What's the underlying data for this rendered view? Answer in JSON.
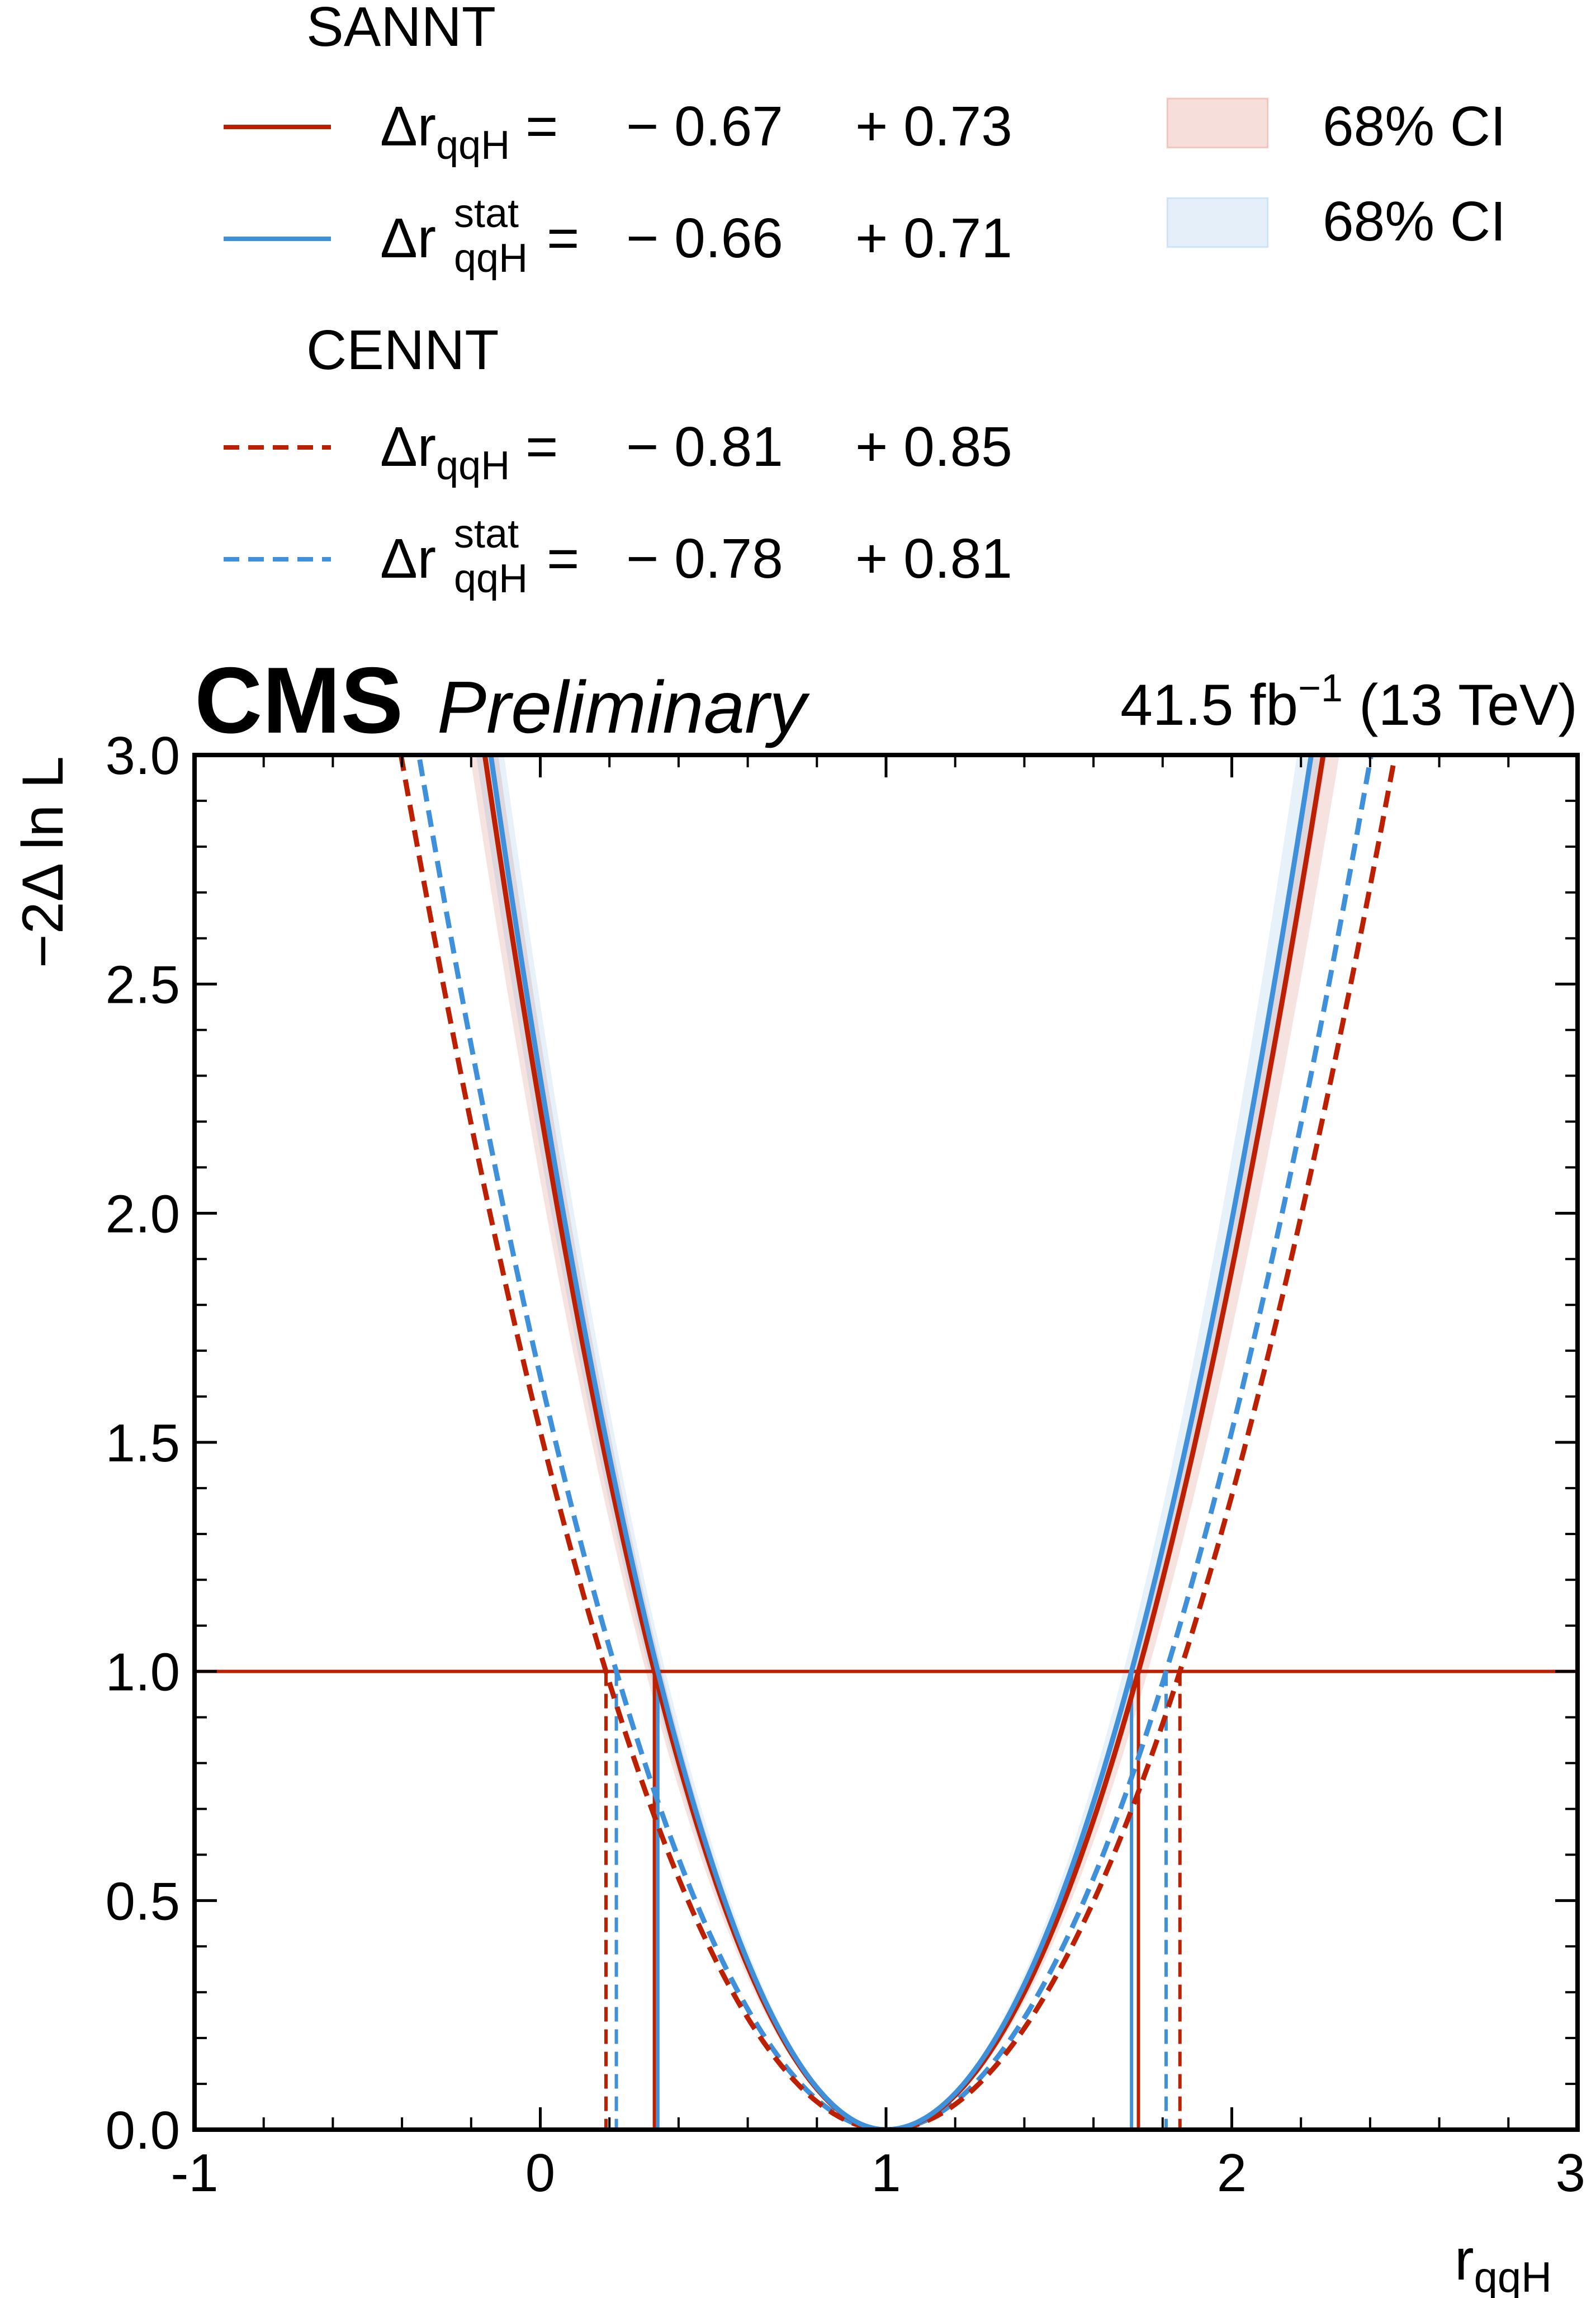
{
  "chart_data": {
    "type": "line",
    "title": "CMS Preliminary",
    "experiment": "CMS",
    "label": "Preliminary",
    "lumi": {
      "value": "41.5 fb",
      "exponent": "−1",
      "energy": "(13 TeV)"
    },
    "xlabel": {
      "main": "r",
      "sub": "qqH"
    },
    "ylabel": "−2Δ ln L",
    "xlim": [
      -1,
      3
    ],
    "ylim": [
      0,
      3
    ],
    "xticks": [
      -1,
      0,
      1,
      2,
      3
    ],
    "xtick_labels": [
      "-1",
      "0",
      "1",
      "2",
      "3"
    ],
    "yticks": [
      0,
      0.5,
      1,
      1.5,
      2,
      2.5,
      3
    ],
    "ytick_labels": [
      "0.0",
      "0.5",
      "1.0",
      "1.5",
      "2.0",
      "2.5",
      "3.0"
    ],
    "best_fit": 1.0,
    "threshold": 1.0,
    "groups": [
      {
        "name": "SANNT",
        "entries": [
          {
            "symbol": "Δr",
            "sub": "qqH",
            "sup": "",
            "minus": "− 0.67",
            "plus": "+ 0.73",
            "lo": 0.33,
            "hi": 1.73,
            "style": "solid",
            "color": "#bd1f01",
            "band": true
          },
          {
            "symbol": "Δr",
            "sub": "qqH",
            "sup": "stat",
            "minus": "− 0.66",
            "plus": "+ 0.71",
            "lo": 0.34,
            "hi": 1.71,
            "style": "solid",
            "color": "#3f90da",
            "band": true
          }
        ]
      },
      {
        "name": "CENNT",
        "entries": [
          {
            "symbol": "Δr",
            "sub": "qqH",
            "sup": "",
            "minus": "− 0.81",
            "plus": "+ 0.85",
            "lo": 0.19,
            "hi": 1.85,
            "style": "dashed",
            "color": "#bd1f01",
            "band": false
          },
          {
            "symbol": "Δr",
            "sub": "qqH",
            "sup": "stat",
            "minus": "− 0.78",
            "plus": "+ 0.81",
            "lo": 0.22,
            "hi": 1.81,
            "style": "dashed",
            "color": "#3f90da",
            "band": false
          }
        ]
      }
    ],
    "bands_legend": [
      {
        "label": "68% CI",
        "color": "#bd1f01"
      },
      {
        "label": "68% CI",
        "color": "#3f90da"
      }
    ]
  }
}
